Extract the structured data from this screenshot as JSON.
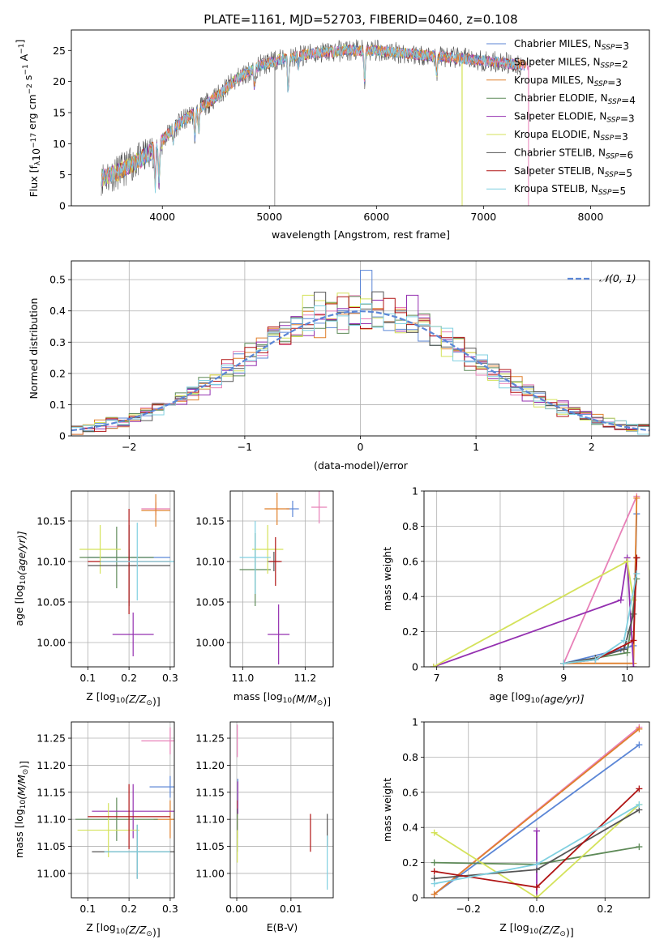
{
  "figure_title": "PLATE=1161, MJD=52703, FIBERID=0460, z=0.108",
  "colors": {
    "Chabrier MILES": "#5b86d6",
    "Salpeter MILES": "#e880b8",
    "Kroupa MILES": "#e0802c",
    "Chabrier ELODIE": "#5e8a58",
    "Salpeter ELODIE": "#9430b0",
    "Kroupa ELODIE": "#d4e25a",
    "Chabrier STELIB": "#555555",
    "Salpeter STELIB": "#b01414",
    "Kroupa STELIB": "#80d0e0"
  },
  "legend_names": [
    "Chabrier MILES",
    "Salpeter MILES",
    "Kroupa MILES",
    "Chabrier ELODIE",
    "Salpeter ELODIE",
    "Kroupa ELODIE",
    "Chabrier STELIB",
    "Salpeter STELIB",
    "Kroupa STELIB"
  ],
  "chart_data": [
    {
      "id": "spectrum",
      "type": "line",
      "title": "PLATE=1161, MJD=52703, FIBERID=0460, z=0.108",
      "xlabel": "wavelength [Angstrom, rest frame]",
      "ylabel_main": "Flux [f",
      "ylabel_sub": "λ",
      "ylabel_rest": "10",
      "ylabel_exp1": "−17",
      "ylabel_mid": " erg cm",
      "ylabel_exp2": "−2",
      "ylabel_mid2": " s",
      "ylabel_exp3": "−1",
      "ylabel_end": " A",
      "ylabel_exp4": "−1",
      "ylabel_close": "]",
      "xlim": [
        3150,
        8550
      ],
      "ylim": [
        0,
        28.3
      ],
      "xticks": [
        4000,
        5000,
        6000,
        7000,
        8000
      ],
      "yticks": [
        0,
        5,
        10,
        15,
        20,
        25
      ],
      "legend": [
        {
          "name": "Chabrier MILES",
          "nssp": "3"
        },
        {
          "name": "Salpeter MILES",
          "nssp": "2"
        },
        {
          "name": "Kroupa MILES",
          "nssp": "3"
        },
        {
          "name": "Chabrier ELODIE",
          "nssp": "4"
        },
        {
          "name": "Salpeter ELODIE",
          "nssp": "3"
        },
        {
          "name": "Kroupa ELODIE",
          "nssp": "3"
        },
        {
          "name": "Chabrier STELIB",
          "nssp": "6"
        },
        {
          "name": "Salpeter STELIB",
          "nssp": "5"
        },
        {
          "name": "Kroupa STELIB",
          "nssp": "5"
        }
      ],
      "legend_label_prefix": "N",
      "legend_label_sub": "SSP",
      "legend_placement": "right",
      "continuum": [
        [
          3430,
          4.5
        ],
        [
          3600,
          5.5
        ],
        [
          3800,
          7.5
        ],
        [
          3950,
          9.5
        ],
        [
          4100,
          12.5
        ],
        [
          4300,
          15
        ],
        [
          4500,
          17.5
        ],
        [
          4700,
          20.5
        ],
        [
          4900,
          22.5
        ],
        [
          5100,
          23.5
        ],
        [
          5400,
          24.5
        ],
        [
          5700,
          25
        ],
        [
          6000,
          25
        ],
        [
          6300,
          24.5
        ],
        [
          6600,
          24
        ],
        [
          6900,
          23.5
        ],
        [
          7200,
          23
        ],
        [
          7400,
          22.5
        ]
      ],
      "absorption_lines": [
        [
          3934,
          6
        ],
        [
          3969,
          6
        ],
        [
          4101,
          2.5
        ],
        [
          4304,
          4
        ],
        [
          4340,
          3
        ],
        [
          4861,
          3
        ],
        [
          5175,
          5
        ],
        [
          5270,
          2
        ],
        [
          5890,
          5
        ],
        [
          6563,
          3
        ]
      ],
      "deep_drops": [
        [
          5050,
          "Chabrier STELIB",
          0
        ],
        [
          6800,
          "Kroupa ELODIE",
          0
        ],
        [
          7420,
          "Salpeter MILES",
          0
        ]
      ],
      "grid": false
    },
    {
      "id": "residuals",
      "type": "histogram",
      "xlabel": "(data-model)/error",
      "ylabel": "Normed distribution",
      "xlim": [
        -2.5,
        2.5
      ],
      "ylim": [
        0,
        0.56
      ],
      "xticks": [
        -2,
        -1,
        0,
        1,
        2
      ],
      "yticks": [
        0.0,
        0.1,
        0.2,
        0.3,
        0.4,
        0.5
      ],
      "bin_width": 0.1,
      "grid": true,
      "legend_label": "𝒩(0, 1)",
      "legend_placement": "top-right",
      "normal_curve_color": "#5b86d6",
      "spikes": [
        [
          0.05,
          "Chabrier MILES",
          0.53
        ],
        [
          -0.35,
          "Chabrier STELIB",
          0.46
        ],
        [
          0.45,
          "Salpeter ELODIE",
          0.45
        ],
        [
          0.25,
          "Salpeter STELIB",
          0.44
        ],
        [
          -0.45,
          "Kroupa ELODIE",
          0.45
        ]
      ]
    },
    {
      "id": "age_vs_Z",
      "type": "errorbar",
      "xlabel": "Z [log",
      "xlabel_sub": "10",
      "xlabel_end": "(Z/Z",
      "xlabel_sun": "⊙",
      "xlabel_close": ")]",
      "ylabel": "age  [log",
      "ylabel_sub": "10",
      "ylabel_end": "(age/yr)]",
      "xlim": [
        0.06,
        0.31
      ],
      "ylim": [
        9.97,
        10.187
      ],
      "xticks": [
        0.1,
        0.2,
        0.3
      ],
      "yticks": [
        10.0,
        10.05,
        10.1,
        10.15
      ],
      "ytick_labels": [
        "10.00",
        "10.05",
        "10.10",
        "10.15"
      ],
      "grid": true,
      "points": [
        {
          "series": "Chabrier MILES",
          "x": 0.2,
          "y": 10.105,
          "xerr": 0.1,
          "yerr": 0.01
        },
        {
          "series": "Salpeter MILES",
          "x": 0.265,
          "y": 10.165,
          "xerr": 0.035,
          "yerr": 0.008
        },
        {
          "series": "Kroupa MILES",
          "x": 0.265,
          "y": 10.163,
          "xerr": 0.035,
          "yerr": 0.02
        },
        {
          "series": "Chabrier ELODIE",
          "x": 0.17,
          "y": 10.105,
          "xerr": 0.09,
          "yerr": 0.038
        },
        {
          "series": "Salpeter ELODIE",
          "x": 0.21,
          "y": 10.01,
          "xerr": 0.05,
          "yerr": 0.027
        },
        {
          "series": "Kroupa ELODIE",
          "x": 0.13,
          "y": 10.115,
          "xerr": 0.05,
          "yerr": 0.03
        },
        {
          "series": "Chabrier STELIB",
          "x": 0.2,
          "y": 10.095,
          "xerr": 0.1,
          "yerr": 0.05
        },
        {
          "series": "Salpeter STELIB",
          "x": 0.2,
          "y": 10.1,
          "xerr": 0.1,
          "yerr": 0.065
        },
        {
          "series": "Kroupa STELIB",
          "x": 0.22,
          "y": 10.1,
          "xerr": 0.09,
          "yerr": 0.048
        }
      ]
    },
    {
      "id": "age_vs_mass",
      "type": "errorbar",
      "xlabel": "mass [log",
      "xlabel_sub": "10",
      "xlabel_end": "(M/M",
      "xlabel_sun": "⊙",
      "xlabel_close": ")]",
      "xlim": [
        10.96,
        11.29
      ],
      "ylim": [
        9.97,
        10.187
      ],
      "xticks": [
        11.0,
        11.2
      ],
      "xtick_labels": [
        "11.0",
        "11.2"
      ],
      "yticks": [
        10.0,
        10.05,
        10.1,
        10.15
      ],
      "ytick_labels": [
        "10.00",
        "10.05",
        "10.10",
        "10.15"
      ],
      "grid": true,
      "points": [
        {
          "series": "Chabrier MILES",
          "x": 11.16,
          "y": 10.165,
          "xerr": 0.02,
          "yerr": 0.01
        },
        {
          "series": "Salpeter MILES",
          "x": 11.245,
          "y": 10.167,
          "xerr": 0.025,
          "yerr": 0.02
        },
        {
          "series": "Kroupa MILES",
          "x": 11.11,
          "y": 10.165,
          "xerr": 0.04,
          "yerr": 0.02
        },
        {
          "series": "Chabrier ELODIE",
          "x": 11.04,
          "y": 10.09,
          "xerr": 0.05,
          "yerr": 0.045
        },
        {
          "series": "Salpeter ELODIE",
          "x": 11.115,
          "y": 10.01,
          "xerr": 0.035,
          "yerr": 0.037
        },
        {
          "series": "Kroupa ELODIE",
          "x": 11.08,
          "y": 10.115,
          "xerr": 0.05,
          "yerr": 0.03
        },
        {
          "series": "Chabrier STELIB",
          "x": 11.1,
          "y": 10.1,
          "xerr": 0.02,
          "yerr": 0.012
        },
        {
          "series": "Salpeter STELIB",
          "x": 11.105,
          "y": 10.1,
          "xerr": 0.02,
          "yerr": 0.03
        },
        {
          "series": "Kroupa STELIB",
          "x": 11.04,
          "y": 10.105,
          "xerr": 0.05,
          "yerr": 0.045
        }
      ]
    },
    {
      "id": "massweight_vs_age",
      "type": "line",
      "xlabel": "age  [log",
      "xlabel_sub": "10",
      "xlabel_end": "(age/yr)]",
      "ylabel": "mass weight",
      "xlim": [
        6.8,
        10.35
      ],
      "ylim": [
        0,
        1.0
      ],
      "xticks": [
        7,
        8,
        9,
        10
      ],
      "yticks": [
        0.0,
        0.2,
        0.4,
        0.6,
        0.8,
        1.0
      ],
      "grid": true,
      "series": [
        {
          "name": "Chabrier MILES",
          "points": [
            [
              9.0,
              0.02
            ],
            [
              9.9,
              0.1
            ],
            [
              10.1,
              0.12
            ],
            [
              10.15,
              0.87
            ]
          ]
        },
        {
          "name": "Salpeter MILES",
          "points": [
            [
              9.0,
              0.02
            ],
            [
              10.15,
              0.97
            ]
          ]
        },
        {
          "name": "Kroupa MILES",
          "points": [
            [
              9.0,
              0.02
            ],
            [
              10.1,
              0.02
            ],
            [
              10.15,
              0.96
            ]
          ]
        },
        {
          "name": "Chabrier ELODIE",
          "points": [
            [
              9.0,
              0.02
            ],
            [
              9.5,
              0.05
            ],
            [
              10.0,
              0.08
            ],
            [
              10.05,
              0.2
            ],
            [
              10.15,
              0.5
            ]
          ]
        },
        {
          "name": "Salpeter ELODIE",
          "points": [
            [
              6.95,
              0.0
            ],
            [
              9.9,
              0.38
            ],
            [
              10.0,
              0.62
            ],
            [
              10.1,
              0.0
            ]
          ]
        },
        {
          "name": "Kroupa ELODIE",
          "points": [
            [
              6.95,
              0.0
            ],
            [
              10.0,
              0.6
            ],
            [
              10.1,
              0.38
            ]
          ]
        },
        {
          "name": "Chabrier STELIB",
          "points": [
            [
              9.0,
              0.02
            ],
            [
              9.5,
              0.05
            ],
            [
              9.95,
              0.1
            ],
            [
              10.1,
              0.3
            ],
            [
              10.15,
              0.62
            ]
          ]
        },
        {
          "name": "Salpeter STELIB",
          "points": [
            [
              9.0,
              0.02
            ],
            [
              9.5,
              0.04
            ],
            [
              10.1,
              0.15
            ],
            [
              10.15,
              0.62
            ]
          ]
        },
        {
          "name": "Kroupa STELIB",
          "points": [
            [
              9.0,
              0.02
            ],
            [
              9.5,
              0.04
            ],
            [
              9.95,
              0.15
            ],
            [
              10.15,
              0.53
            ]
          ]
        }
      ]
    },
    {
      "id": "mass_vs_Z",
      "type": "errorbar",
      "xlabel": "Z [log",
      "xlabel_sub": "10",
      "xlabel_end": "(Z/Z",
      "xlabel_sun": "⊙",
      "xlabel_close": ")]",
      "ylabel": "mass [log",
      "ylabel_sub": "10",
      "ylabel_end": "(M/M",
      "ylabel_sun": "⊙",
      "ylabel_close": ")]",
      "xlim": [
        0.06,
        0.31
      ],
      "ylim": [
        10.955,
        11.28
      ],
      "xticks": [
        0.1,
        0.2,
        0.3
      ],
      "yticks": [
        11.0,
        11.05,
        11.1,
        11.15,
        11.2,
        11.25
      ],
      "ytick_labels": [
        "11.00",
        "11.05",
        "11.10",
        "11.15",
        "11.20",
        "11.25"
      ],
      "grid": true,
      "points": [
        {
          "series": "Chabrier MILES",
          "x": 0.3,
          "y": 11.16,
          "xerr": 0.05,
          "yerr": 0.02
        },
        {
          "series": "Salpeter MILES",
          "x": 0.3,
          "y": 11.245,
          "xerr": 0.07,
          "yerr": 0.025
        },
        {
          "series": "Kroupa MILES",
          "x": 0.3,
          "y": 11.1,
          "xerr": 0.04,
          "yerr": 0.035
        },
        {
          "series": "Chabrier ELODIE",
          "x": 0.17,
          "y": 11.1,
          "xerr": 0.1,
          "yerr": 0.04
        },
        {
          "series": "Salpeter ELODIE",
          "x": 0.21,
          "y": 11.115,
          "xerr": 0.1,
          "yerr": 0.05
        },
        {
          "series": "Kroupa ELODIE",
          "x": 0.15,
          "y": 11.08,
          "xerr": 0.075,
          "yerr": 0.05
        },
        {
          "series": "Chabrier STELIB",
          "x": 0.22,
          "y": 11.04,
          "xerr": 0.11,
          "yerr": 0.05
        },
        {
          "series": "Salpeter STELIB",
          "x": 0.2,
          "y": 11.105,
          "xerr": 0.1,
          "yerr": 0.06
        },
        {
          "series": "Kroupa STELIB",
          "x": 0.22,
          "y": 11.04,
          "xerr": 0.08,
          "yerr": 0.05
        }
      ]
    },
    {
      "id": "mass_vs_ebv",
      "type": "errorbar",
      "xlabel": "E(B-V)",
      "xlim": [
        -0.0012,
        0.0178
      ],
      "ylim": [
        10.955,
        11.28
      ],
      "xticks": [
        0.0,
        0.01
      ],
      "xtick_labels": [
        "0.00",
        "0.01"
      ],
      "yticks": [
        11.0,
        11.05,
        11.1,
        11.15,
        11.2,
        11.25
      ],
      "ytick_labels": [
        "11.00",
        "11.05",
        "11.10",
        "11.15",
        "11.20",
        "11.25"
      ],
      "grid": true,
      "points": [
        {
          "series": "Chabrier MILES",
          "x": 0.0002,
          "y": 11.15,
          "xerr": 0.0,
          "yerr": 0.025
        },
        {
          "series": "Salpeter MILES",
          "x": 0.0001,
          "y": 11.245,
          "xerr": 0.0,
          "yerr": 0.03
        },
        {
          "series": "Kroupa MILES",
          "x": 0.0001,
          "y": 11.1,
          "xerr": 0.0,
          "yerr": 0.035
        },
        {
          "series": "Chabrier ELODIE",
          "x": 0.0001,
          "y": 11.08,
          "xerr": 0.0,
          "yerr": 0.04
        },
        {
          "series": "Salpeter ELODIE",
          "x": 0.0002,
          "y": 11.14,
          "xerr": 0.0,
          "yerr": 0.03
        },
        {
          "series": "Kroupa ELODIE",
          "x": 0.0001,
          "y": 11.05,
          "xerr": 0.0,
          "yerr": 0.03
        },
        {
          "series": "Chabrier STELIB",
          "x": 0.0167,
          "y": 11.08,
          "xerr": 0.0,
          "yerr": 0.03
        },
        {
          "series": "Salpeter STELIB",
          "x": 0.0136,
          "y": 11.075,
          "xerr": 0.0,
          "yerr": 0.035
        },
        {
          "series": "Kroupa STELIB",
          "x": 0.0167,
          "y": 11.02,
          "xerr": 0.0,
          "yerr": 0.05
        }
      ]
    },
    {
      "id": "massweight_vs_Z",
      "type": "line",
      "xlabel": "Z [log",
      "xlabel_sub": "10",
      "xlabel_end": "(Z/Z",
      "xlabel_sun": "⊙",
      "xlabel_close": ")]",
      "ylabel": "mass weight",
      "xlim": [
        -0.33,
        0.33
      ],
      "ylim": [
        0,
        1.0
      ],
      "xticks": [
        -0.2,
        0.0,
        0.2
      ],
      "xtick_labels": [
        "−0.2",
        "0.0",
        "0.2"
      ],
      "yticks": [
        0.0,
        0.2,
        0.4,
        0.6,
        0.8,
        1.0
      ],
      "grid": true,
      "series": [
        {
          "name": "Chabrier MILES",
          "points": [
            [
              -0.3,
              0.02
            ],
            [
              0.3,
              0.87
            ]
          ]
        },
        {
          "name": "Salpeter MILES",
          "points": [
            [
              -0.3,
              0.02
            ],
            [
              0.3,
              0.97
            ]
          ]
        },
        {
          "name": "Kroupa MILES",
          "points": [
            [
              -0.3,
              0.02
            ],
            [
              0.3,
              0.96
            ]
          ]
        },
        {
          "name": "Chabrier ELODIE",
          "points": [
            [
              -0.3,
              0.2
            ],
            [
              0.0,
              0.19
            ],
            [
              0.3,
              0.29
            ]
          ]
        },
        {
          "name": "Salpeter ELODIE",
          "points": [
            [
              0.0,
              0.38
            ],
            [
              0.0,
              0.0
            ]
          ]
        },
        {
          "name": "Kroupa ELODIE",
          "points": [
            [
              -0.3,
              0.37
            ],
            [
              0.0,
              0.0
            ],
            [
              0.3,
              0.53
            ]
          ]
        },
        {
          "name": "Chabrier STELIB",
          "points": [
            [
              -0.3,
              0.11
            ],
            [
              0.0,
              0.16
            ],
            [
              0.3,
              0.5
            ]
          ]
        },
        {
          "name": "Salpeter STELIB",
          "points": [
            [
              -0.3,
              0.15
            ],
            [
              0.0,
              0.06
            ],
            [
              0.3,
              0.62
            ]
          ]
        },
        {
          "name": "Kroupa STELIB",
          "points": [
            [
              -0.3,
              0.08
            ],
            [
              0.0,
              0.19
            ],
            [
              0.3,
              0.53
            ]
          ]
        }
      ]
    }
  ]
}
